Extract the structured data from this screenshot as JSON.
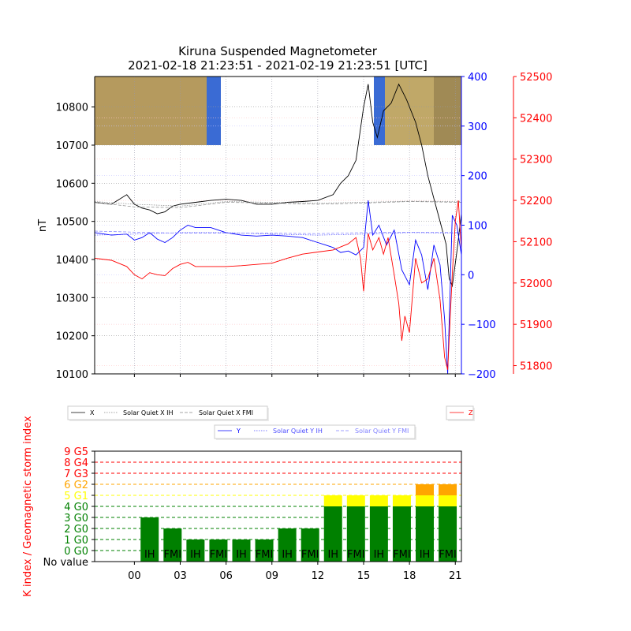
{
  "chart_data": [
    {
      "type": "line",
      "title_line1": "Kiruna Suspended Magnetometer",
      "title_line2": "2021-02-18 21:23:51 - 2021-02-19 21:23:51 [UTC]",
      "ylabel": "nT",
      "x_tick_labels": [
        "00",
        "03",
        "06",
        "09",
        "12",
        "15",
        "18",
        "21"
      ],
      "x_range_hours": [
        -2.6,
        21.4
      ],
      "y_left": {
        "ticks": [
          10100,
          10200,
          10300,
          10400,
          10500,
          10600,
          10700,
          10800
        ],
        "range": [
          10100,
          10880
        ],
        "color": "#000000"
      },
      "y_right_blue": {
        "ticks": [
          -200,
          -100,
          0,
          100,
          200,
          300,
          400
        ],
        "tick_labels": [
          "−200",
          "−100",
          "0",
          "100",
          "200",
          "300",
          "400"
        ],
        "range": [
          -200,
          400
        ],
        "color": "#0000ff"
      },
      "y_right_red": {
        "ticks": [
          51800,
          51900,
          52000,
          52100,
          52200,
          52300,
          52400,
          52500
        ],
        "range": [
          51780,
          52500
        ],
        "color": "#ff0000"
      },
      "legend_x": [
        {
          "name": "X",
          "color": "#000000",
          "style": "solid"
        },
        {
          "name": "Solar Quiet X IH",
          "color": "#888888",
          "style": "dotted"
        },
        {
          "name": "Solar Quiet X FMI",
          "color": "#888888",
          "style": "dashed"
        }
      ],
      "legend_y": [
        {
          "name": "Y",
          "color": "#0000ff",
          "style": "solid"
        },
        {
          "name": "Solar Quiet Y IH",
          "color": "#4d4dff",
          "style": "dotted"
        },
        {
          "name": "Solar Quiet Y FMI",
          "color": "#8080ff",
          "style": "dashed"
        }
      ],
      "legend_z": [
        {
          "name": "Z",
          "color": "#ff0000",
          "style": "solid"
        }
      ],
      "series": [
        {
          "name": "X",
          "axis": "left",
          "color": "#000000",
          "points": [
            [
              -2.6,
              10550
            ],
            [
              -1.5,
              10545
            ],
            [
              -0.5,
              10570
            ],
            [
              0,
              10545
            ],
            [
              0.5,
              10535
            ],
            [
              1,
              10530
            ],
            [
              1.5,
              10520
            ],
            [
              2,
              10525
            ],
            [
              2.5,
              10540
            ],
            [
              3,
              10545
            ],
            [
              4,
              10550
            ],
            [
              5,
              10555
            ],
            [
              6,
              10558
            ],
            [
              7,
              10555
            ],
            [
              8,
              10545
            ],
            [
              9,
              10545
            ],
            [
              10,
              10550
            ],
            [
              11,
              10552
            ],
            [
              12,
              10555
            ],
            [
              13,
              10570
            ],
            [
              13.5,
              10600
            ],
            [
              14,
              10620
            ],
            [
              14.5,
              10660
            ],
            [
              15,
              10800
            ],
            [
              15.3,
              10860
            ],
            [
              15.6,
              10760
            ],
            [
              15.9,
              10720
            ],
            [
              16.3,
              10790
            ],
            [
              16.8,
              10810
            ],
            [
              17.3,
              10860
            ],
            [
              17.8,
              10820
            ],
            [
              18.4,
              10760
            ],
            [
              18.8,
              10700
            ],
            [
              19.2,
              10620
            ],
            [
              19.6,
              10560
            ],
            [
              20,
              10500
            ],
            [
              20.4,
              10440
            ],
            [
              20.6,
              10350
            ],
            [
              20.8,
              10330
            ],
            [
              21.1,
              10420
            ],
            [
              21.4,
              10520
            ]
          ]
        },
        {
          "name": "Solar Quiet X IH",
          "axis": "left",
          "color": "#888888",
          "points": [
            [
              -2.6,
              10552
            ],
            [
              0,
              10545
            ],
            [
              3,
              10540
            ],
            [
              6,
              10552
            ],
            [
              9,
              10550
            ],
            [
              12,
              10548
            ],
            [
              15,
              10550
            ],
            [
              18,
              10553
            ],
            [
              21.4,
              10552
            ]
          ]
        },
        {
          "name": "Solar Quiet X FMI",
          "axis": "left",
          "color": "#888888",
          "points": [
            [
              -2.6,
              10550
            ],
            [
              0,
              10538
            ],
            [
              3,
              10536
            ],
            [
              6,
              10550
            ],
            [
              9,
              10548
            ],
            [
              12,
              10545
            ],
            [
              15,
              10548
            ],
            [
              18,
              10552
            ],
            [
              21.4,
              10550
            ]
          ]
        },
        {
          "name": "Y",
          "axis": "blue",
          "color": "#0000ff",
          "points": [
            [
              -2.6,
              85
            ],
            [
              -1.5,
              80
            ],
            [
              -0.5,
              82
            ],
            [
              0,
              70
            ],
            [
              0.5,
              75
            ],
            [
              1,
              85
            ],
            [
              1.5,
              72
            ],
            [
              2,
              65
            ],
            [
              2.5,
              75
            ],
            [
              3,
              90
            ],
            [
              3.5,
              100
            ],
            [
              4,
              95
            ],
            [
              5,
              95
            ],
            [
              6,
              85
            ],
            [
              7,
              80
            ],
            [
              8,
              78
            ],
            [
              9,
              80
            ],
            [
              10,
              78
            ],
            [
              11,
              75
            ],
            [
              12,
              65
            ],
            [
              12.5,
              60
            ],
            [
              13,
              55
            ],
            [
              13.5,
              45
            ],
            [
              14,
              48
            ],
            [
              14.5,
              40
            ],
            [
              15,
              55
            ],
            [
              15.3,
              150
            ],
            [
              15.6,
              80
            ],
            [
              16,
              100
            ],
            [
              16.5,
              60
            ],
            [
              17,
              90
            ],
            [
              17.5,
              10
            ],
            [
              18,
              -20
            ],
            [
              18.4,
              70
            ],
            [
              18.8,
              40
            ],
            [
              19.2,
              -30
            ],
            [
              19.6,
              60
            ],
            [
              20,
              20
            ],
            [
              20.3,
              -90
            ],
            [
              20.5,
              -200
            ],
            [
              20.8,
              120
            ],
            [
              21.1,
              100
            ],
            [
              21.4,
              40
            ]
          ]
        },
        {
          "name": "Solar Quiet Y IH",
          "axis": "blue",
          "color": "#4d4dff",
          "points": [
            [
              -2.6,
              80
            ],
            [
              0,
              82
            ],
            [
              3,
              85
            ],
            [
              6,
              85
            ],
            [
              9,
              82
            ],
            [
              12,
              80
            ],
            [
              15,
              82
            ],
            [
              18,
              85
            ],
            [
              21.4,
              84
            ]
          ]
        },
        {
          "name": "Solar Quiet Y FMI",
          "axis": "blue",
          "color": "#8080ff",
          "points": [
            [
              -2.6,
              88
            ],
            [
              0,
              86
            ],
            [
              3,
              84
            ],
            [
              6,
              84
            ],
            [
              9,
              84
            ],
            [
              12,
              83
            ],
            [
              15,
              85
            ],
            [
              18,
              86
            ],
            [
              21.4,
              86
            ]
          ]
        },
        {
          "name": "Z",
          "axis": "red",
          "color": "#ff0000",
          "points": [
            [
              -2.6,
              52060
            ],
            [
              -1.5,
              52055
            ],
            [
              -0.5,
              52040
            ],
            [
              0,
              52020
            ],
            [
              0.5,
              52010
            ],
            [
              1,
              52025
            ],
            [
              1.5,
              52020
            ],
            [
              2,
              52018
            ],
            [
              2.5,
              52035
            ],
            [
              3,
              52045
            ],
            [
              3.5,
              52050
            ],
            [
              4,
              52040
            ],
            [
              5,
              52040
            ],
            [
              6,
              52040
            ],
            [
              7,
              52042
            ],
            [
              8,
              52045
            ],
            [
              9,
              52048
            ],
            [
              10,
              52060
            ],
            [
              11,
              52070
            ],
            [
              12,
              52075
            ],
            [
              13,
              52080
            ],
            [
              14,
              52095
            ],
            [
              14.5,
              52110
            ],
            [
              14.8,
              52060
            ],
            [
              15,
              51980
            ],
            [
              15.3,
              52120
            ],
            [
              15.6,
              52080
            ],
            [
              16,
              52110
            ],
            [
              16.3,
              52070
            ],
            [
              16.6,
              52110
            ],
            [
              17,
              52020
            ],
            [
              17.3,
              51950
            ],
            [
              17.5,
              51860
            ],
            [
              17.7,
              51920
            ],
            [
              18,
              51880
            ],
            [
              18.4,
              52060
            ],
            [
              18.8,
              52000
            ],
            [
              19.2,
              52010
            ],
            [
              19.6,
              52060
            ],
            [
              20,
              51960
            ],
            [
              20.3,
              51820
            ],
            [
              20.5,
              51790
            ],
            [
              20.8,
              52020
            ],
            [
              21,
              52150
            ],
            [
              21.2,
              52200
            ],
            [
              21.4,
              52080
            ]
          ]
        }
      ]
    },
    {
      "type": "bar",
      "ylabel": "K index / Geomagnetic storm index",
      "x_tick_labels": [
        "00",
        "03",
        "06",
        "09",
        "12",
        "15",
        "18",
        "21"
      ],
      "y_tick_labels": [
        "No value",
        "0 G0",
        "1 G0",
        "2 G0",
        "3 G0",
        "4 G0",
        "5 G1",
        "6 G2",
        "7 G3",
        "8 G4",
        "9 G5"
      ],
      "y_tick_colors": [
        "#000000",
        "#008000",
        "#008000",
        "#008000",
        "#008000",
        "#008000",
        "#ffff00",
        "#ffa500",
        "#ff0000",
        "#ff0000",
        "#ff0000"
      ],
      "level_colors": {
        "quiet": "#008000",
        "g1": "#ffff00",
        "g2": "#ffa500"
      },
      "bars": [
        {
          "hour": 1.0,
          "k": 3,
          "label": "IH"
        },
        {
          "hour": 2.5,
          "k": 2,
          "label": "FMI"
        },
        {
          "hour": 4.0,
          "k": 1,
          "label": "IH"
        },
        {
          "hour": 5.5,
          "k": 1,
          "label": "FMI"
        },
        {
          "hour": 7.0,
          "k": 1,
          "label": "IH"
        },
        {
          "hour": 8.5,
          "k": 1,
          "label": "FMI"
        },
        {
          "hour": 10.0,
          "k": 2,
          "label": "IH"
        },
        {
          "hour": 11.5,
          "k": 2,
          "label": "FMI"
        },
        {
          "hour": 13.0,
          "k": 5,
          "label": "IH"
        },
        {
          "hour": 14.5,
          "k": 5,
          "label": "FMI"
        },
        {
          "hour": 16.0,
          "k": 5,
          "label": "IH"
        },
        {
          "hour": 17.5,
          "k": 5,
          "label": "FMI"
        },
        {
          "hour": 19.0,
          "k": 6,
          "label": "IH"
        },
        {
          "hour": 20.5,
          "k": 6,
          "label": "FMI"
        }
      ]
    }
  ]
}
